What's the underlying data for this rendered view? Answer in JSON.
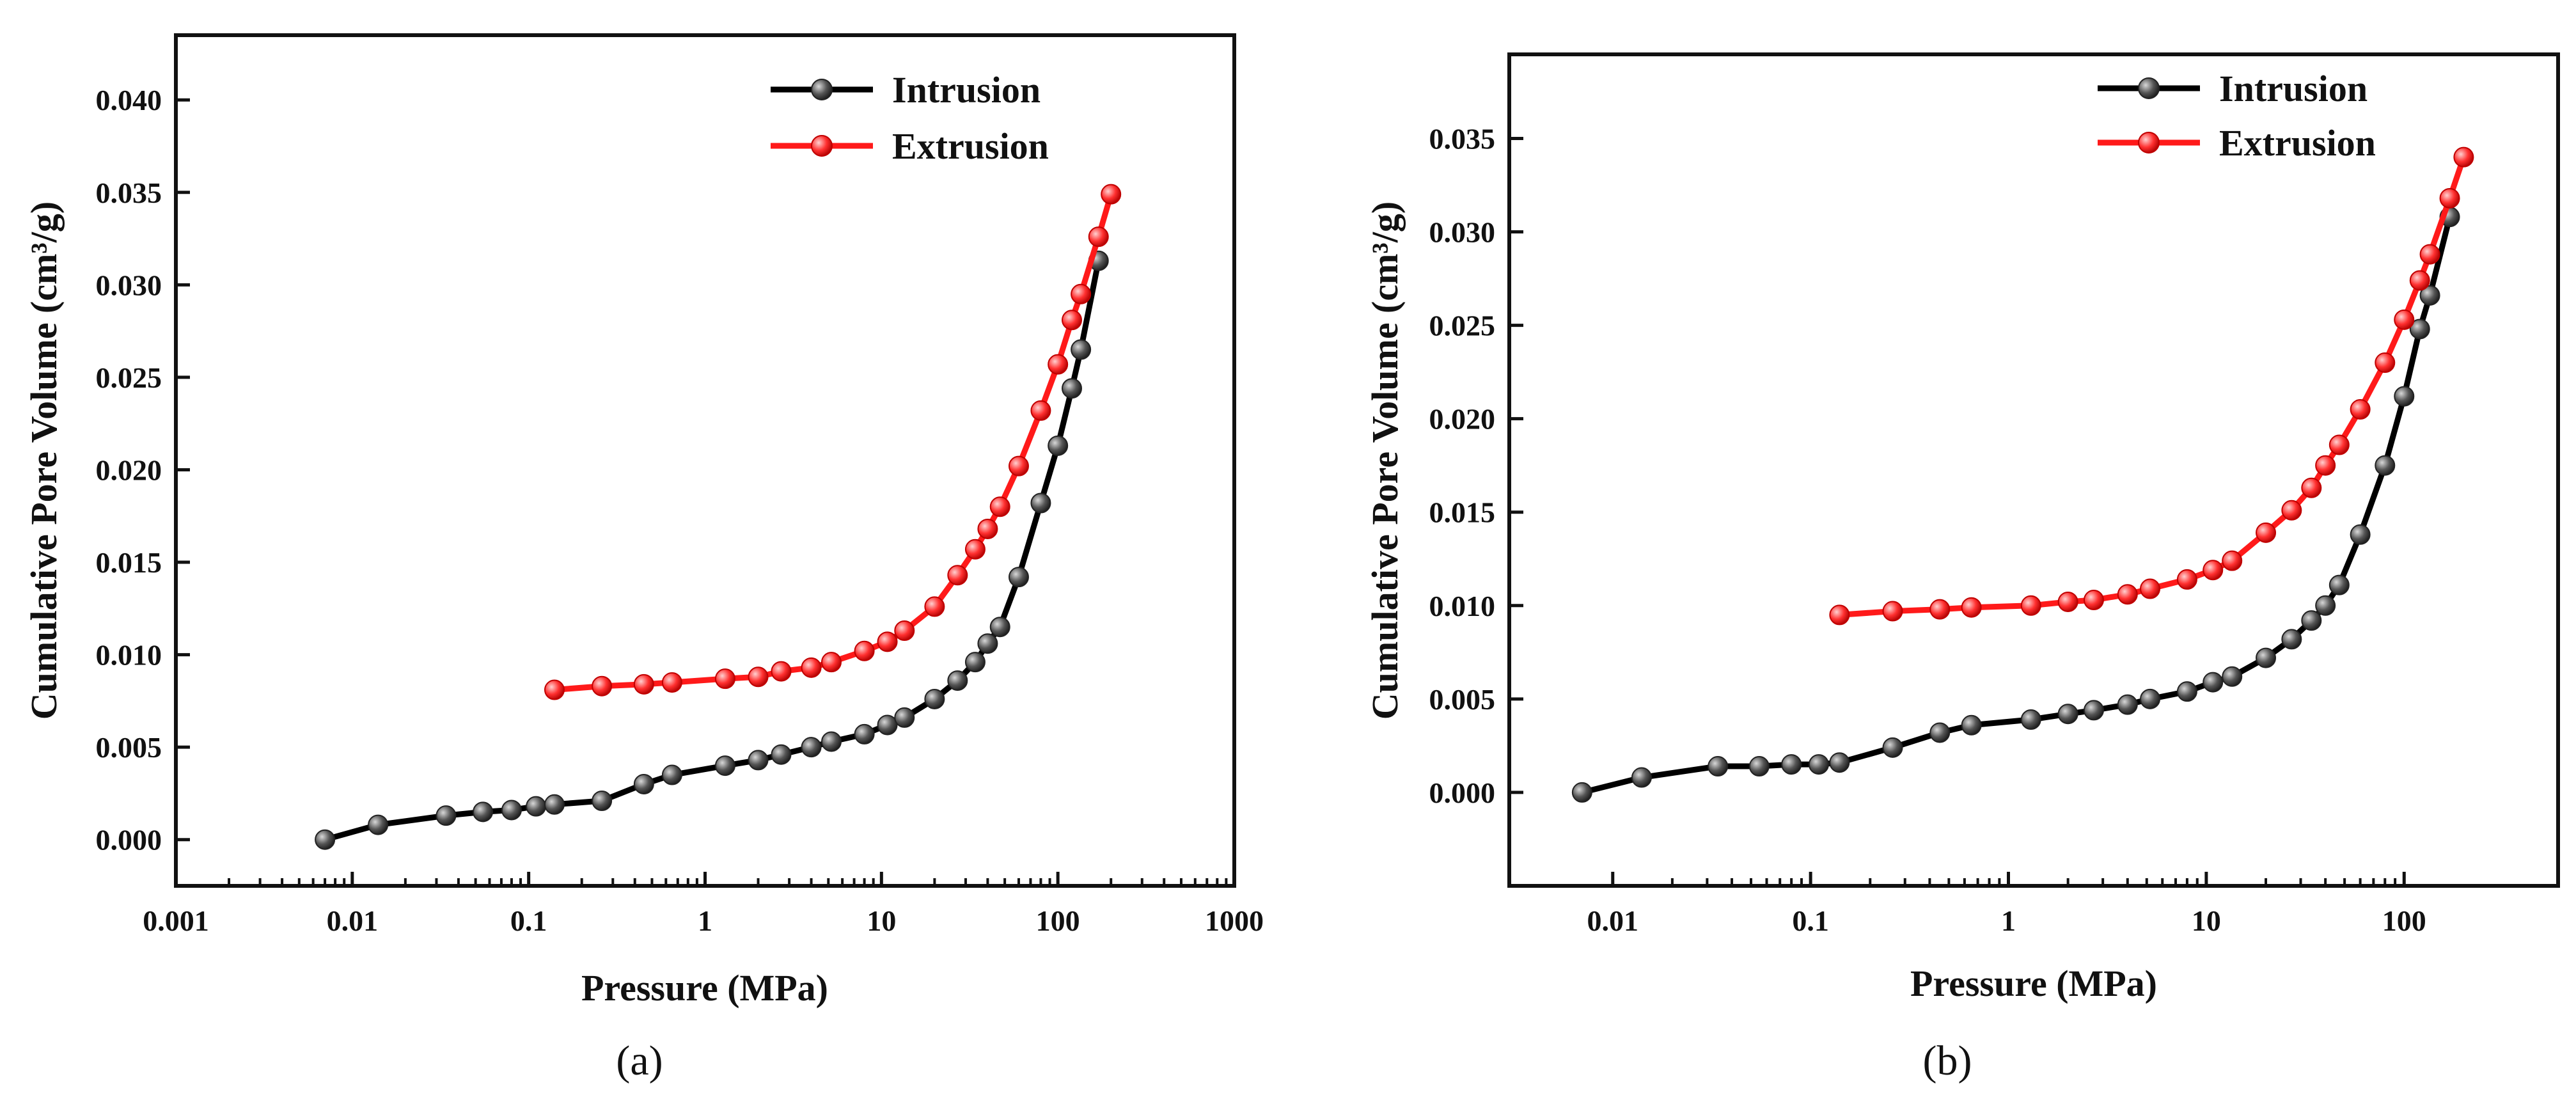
{
  "colors": {
    "intrusion": "#000000",
    "extrusion": "#ff1a1a",
    "axis": "#111111"
  },
  "chart_data": [
    {
      "type": "line",
      "panel_label": "(a)",
      "xlabel": "Pressure (MPa)",
      "ylabel": "Cumulative Pore Volume (cm³/g)",
      "xscale": "log",
      "xlim": [
        0.001,
        1000
      ],
      "ylim": [
        -0.0025,
        0.0435
      ],
      "xticks": [
        0.001,
        0.01,
        0.1,
        1,
        10,
        100,
        1000
      ],
      "xtick_labels": [
        "0.001",
        "0.01",
        "0.1",
        "1",
        "10",
        "100",
        "1000"
      ],
      "yticks": [
        0,
        0.005,
        0.01,
        0.015,
        0.02,
        0.025,
        0.03,
        0.035,
        0.04
      ],
      "ytick_labels": [
        "0.000",
        "0.005",
        "0.010",
        "0.015",
        "0.020",
        "0.025",
        "0.030",
        "0.035",
        "0.040"
      ],
      "legend_position": "top-right",
      "series": [
        {
          "name": "Intrusion",
          "x": [
            0.007,
            0.014,
            0.034,
            0.055,
            0.08,
            0.11,
            0.14,
            0.26,
            0.45,
            0.65,
            1.3,
            2,
            2.7,
            4,
            5.2,
            8,
            10.8,
            13.5,
            20,
            27,
            34,
            40,
            47,
            60,
            80,
            100,
            120,
            135,
            170
          ],
          "y": [
            0.0,
            0.0008,
            0.0013,
            0.0015,
            0.0016,
            0.0018,
            0.0019,
            0.0021,
            0.003,
            0.0035,
            0.004,
            0.0043,
            0.0046,
            0.005,
            0.0053,
            0.0057,
            0.0062,
            0.0066,
            0.0076,
            0.0086,
            0.0096,
            0.0106,
            0.0115,
            0.0142,
            0.0182,
            0.0213,
            0.0244,
            0.0265,
            0.0313
          ]
        },
        {
          "name": "Extrusion",
          "x": [
            0.14,
            0.26,
            0.45,
            0.65,
            1.3,
            2,
            2.7,
            4,
            5.2,
            8,
            10.8,
            13.5,
            20,
            27,
            34,
            40,
            47,
            60,
            80,
            100,
            120,
            135,
            170,
            200
          ],
          "y": [
            0.0081,
            0.0083,
            0.0084,
            0.0085,
            0.0087,
            0.0088,
            0.0091,
            0.0093,
            0.0096,
            0.0102,
            0.0107,
            0.0113,
            0.0126,
            0.0143,
            0.0157,
            0.0168,
            0.018,
            0.0202,
            0.0232,
            0.0257,
            0.0281,
            0.0295,
            0.0326,
            0.0349
          ]
        }
      ]
    },
    {
      "type": "line",
      "panel_label": "(b)",
      "xlabel": "Pressure (MPa)",
      "ylabel": "Cumulative Pore Volume (cm³/g)",
      "xscale": "log",
      "xlim": [
        0.003,
        600
      ],
      "ylim": [
        -0.005,
        0.0395
      ],
      "xticks": [
        0.01,
        0.1,
        1,
        10,
        100
      ],
      "xtick_labels": [
        "0.01",
        "0.1",
        "1",
        "10",
        "100"
      ],
      "yticks": [
        0,
        0.005,
        0.01,
        0.015,
        0.02,
        0.025,
        0.03,
        0.035
      ],
      "ytick_labels": [
        "0.000",
        "0.005",
        "0.010",
        "0.015",
        "0.020",
        "0.025",
        "0.030",
        "0.035"
      ],
      "legend_position": "top-right",
      "series": [
        {
          "name": "Intrusion",
          "x": [
            0.007,
            0.014,
            0.034,
            0.055,
            0.08,
            0.11,
            0.14,
            0.26,
            0.45,
            0.65,
            1.3,
            2,
            2.7,
            4,
            5.2,
            8,
            10.8,
            13.5,
            20,
            27,
            34,
            40,
            47,
            60,
            80,
            100,
            120,
            135,
            170
          ],
          "y": [
            0.0,
            0.0008,
            0.0014,
            0.0014,
            0.0015,
            0.0015,
            0.0016,
            0.0024,
            0.0032,
            0.0036,
            0.0039,
            0.0042,
            0.0044,
            0.0047,
            0.005,
            0.0054,
            0.0059,
            0.0062,
            0.0072,
            0.0082,
            0.0092,
            0.01,
            0.0111,
            0.0138,
            0.0175,
            0.0212,
            0.0248,
            0.0266,
            0.0308
          ]
        },
        {
          "name": "Extrusion",
          "x": [
            0.14,
            0.26,
            0.45,
            0.65,
            1.3,
            2,
            2.7,
            4,
            5.2,
            8,
            10.8,
            13.5,
            20,
            27,
            34,
            40,
            47,
            60,
            80,
            100,
            120,
            135,
            170,
            200
          ],
          "y": [
            0.0095,
            0.0097,
            0.0098,
            0.0099,
            0.01,
            0.0102,
            0.0103,
            0.0106,
            0.0109,
            0.0114,
            0.0119,
            0.0124,
            0.0139,
            0.0151,
            0.0163,
            0.0175,
            0.0186,
            0.0205,
            0.023,
            0.0253,
            0.0274,
            0.0288,
            0.0318,
            0.034
          ]
        }
      ]
    }
  ]
}
